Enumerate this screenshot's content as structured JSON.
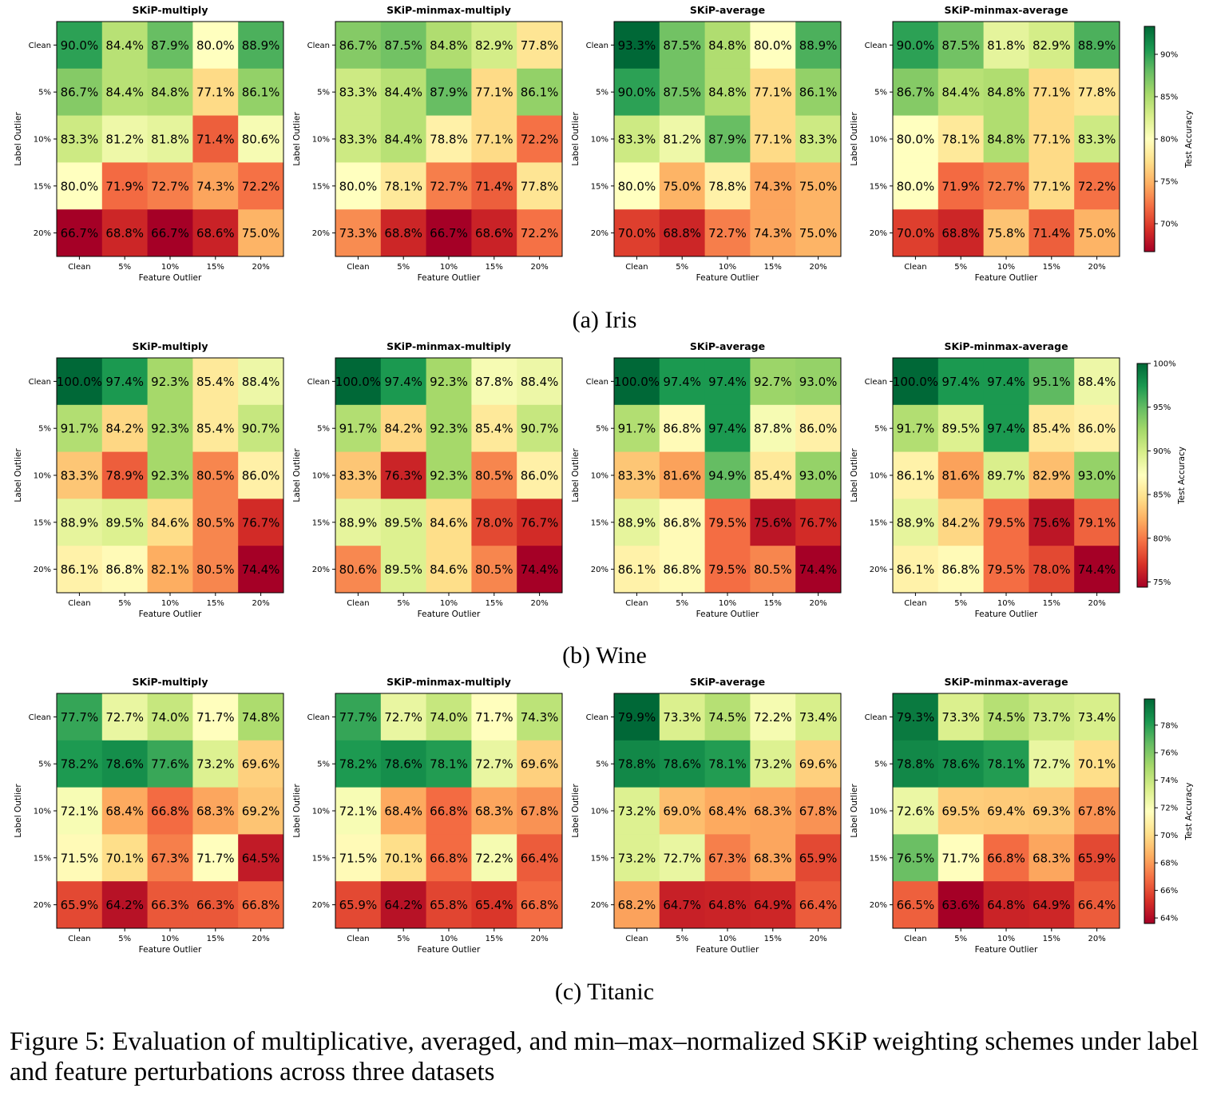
{
  "figure": {
    "caption": "Figure 5: Evaluation of multiplicative, averaged, and min–max–normalized SKiP weighting schemes under label and feature perturbations across three datasets"
  },
  "chart_data": [
    {
      "dataset_label": "(a) Iris",
      "type": "heatmap",
      "xlabel": "Feature Outlier",
      "ylabel": "Label Outlier",
      "x_categories": [
        "Clean",
        "5%",
        "10%",
        "15%",
        "20%"
      ],
      "y_categories": [
        "Clean",
        "5%",
        "10%",
        "15%",
        "20%"
      ],
      "colorbar_label": "Test Accuracy",
      "colorbar_range": [
        66.7,
        93.3
      ],
      "colorbar_ticks": [
        70,
        75,
        80,
        85,
        90
      ],
      "colormap": "RdYlGn",
      "panels": [
        {
          "title": "SKiP-multiply",
          "values": [
            [
              90.0,
              84.4,
              87.9,
              80.0,
              88.9
            ],
            [
              86.7,
              84.4,
              84.8,
              77.1,
              86.1
            ],
            [
              83.3,
              81.2,
              81.8,
              71.4,
              80.6
            ],
            [
              80.0,
              71.9,
              72.7,
              74.3,
              72.2
            ],
            [
              66.7,
              68.8,
              66.7,
              68.6,
              75.0
            ]
          ]
        },
        {
          "title": "SKiP-minmax-multiply",
          "values": [
            [
              86.7,
              87.5,
              84.8,
              82.9,
              77.8
            ],
            [
              83.3,
              84.4,
              87.9,
              77.1,
              86.1
            ],
            [
              83.3,
              84.4,
              78.8,
              77.1,
              72.2
            ],
            [
              80.0,
              78.1,
              72.7,
              71.4,
              77.8
            ],
            [
              73.3,
              68.8,
              66.7,
              68.6,
              72.2
            ]
          ]
        },
        {
          "title": "SKiP-average",
          "values": [
            [
              93.3,
              87.5,
              84.8,
              80.0,
              88.9
            ],
            [
              90.0,
              87.5,
              84.8,
              77.1,
              86.1
            ],
            [
              83.3,
              81.2,
              87.9,
              77.1,
              83.3
            ],
            [
              80.0,
              75.0,
              78.8,
              74.3,
              75.0
            ],
            [
              70.0,
              68.8,
              72.7,
              74.3,
              75.0
            ]
          ]
        },
        {
          "title": "SKiP-minmax-average",
          "values": [
            [
              90.0,
              87.5,
              81.8,
              82.9,
              88.9
            ],
            [
              86.7,
              84.4,
              84.8,
              77.1,
              77.8
            ],
            [
              80.0,
              78.1,
              84.8,
              77.1,
              83.3
            ],
            [
              80.0,
              71.9,
              72.7,
              77.1,
              72.2
            ],
            [
              70.0,
              68.8,
              75.8,
              71.4,
              75.0
            ]
          ]
        }
      ]
    },
    {
      "dataset_label": "(b) Wine",
      "type": "heatmap",
      "xlabel": "Feature Outlier",
      "ylabel": "Label Outlier",
      "x_categories": [
        "Clean",
        "5%",
        "10%",
        "15%",
        "20%"
      ],
      "y_categories": [
        "Clean",
        "5%",
        "10%",
        "15%",
        "20%"
      ],
      "colorbar_label": "Test Accuracy",
      "colorbar_range": [
        74.4,
        100.0
      ],
      "colorbar_ticks": [
        75,
        80,
        85,
        90,
        95,
        100
      ],
      "colormap": "RdYlGn",
      "panels": [
        {
          "title": "SKiP-multiply",
          "values": [
            [
              100.0,
              97.4,
              92.3,
              85.4,
              88.4
            ],
            [
              91.7,
              84.2,
              92.3,
              85.4,
              90.7
            ],
            [
              83.3,
              78.9,
              92.3,
              80.5,
              86.0
            ],
            [
              88.9,
              89.5,
              84.6,
              80.5,
              76.7
            ],
            [
              86.1,
              86.8,
              82.1,
              80.5,
              74.4
            ]
          ]
        },
        {
          "title": "SKiP-minmax-multiply",
          "values": [
            [
              100.0,
              97.4,
              92.3,
              87.8,
              88.4
            ],
            [
              91.7,
              84.2,
              92.3,
              85.4,
              90.7
            ],
            [
              83.3,
              76.3,
              92.3,
              80.5,
              86.0
            ],
            [
              88.9,
              89.5,
              84.6,
              78.0,
              76.7
            ],
            [
              80.6,
              89.5,
              84.6,
              80.5,
              74.4
            ]
          ]
        },
        {
          "title": "SKiP-average",
          "values": [
            [
              100.0,
              97.4,
              97.4,
              92.7,
              93.0
            ],
            [
              91.7,
              86.8,
              97.4,
              87.8,
              86.0
            ],
            [
              83.3,
              81.6,
              94.9,
              85.4,
              93.0
            ],
            [
              88.9,
              86.8,
              79.5,
              75.6,
              76.7
            ],
            [
              86.1,
              86.8,
              79.5,
              80.5,
              74.4
            ]
          ]
        },
        {
          "title": "SKiP-minmax-average",
          "values": [
            [
              100.0,
              97.4,
              97.4,
              95.1,
              88.4
            ],
            [
              91.7,
              89.5,
              97.4,
              85.4,
              86.0
            ],
            [
              86.1,
              81.6,
              89.7,
              82.9,
              93.0
            ],
            [
              88.9,
              84.2,
              79.5,
              75.6,
              79.1
            ],
            [
              86.1,
              86.8,
              79.5,
              78.0,
              74.4
            ]
          ]
        }
      ]
    },
    {
      "dataset_label": "(c) Titanic",
      "type": "heatmap",
      "xlabel": "Feature Outlier",
      "ylabel": "Label Outlier",
      "x_categories": [
        "Clean",
        "5%",
        "10%",
        "15%",
        "20%"
      ],
      "y_categories": [
        "Clean",
        "5%",
        "10%",
        "15%",
        "20%"
      ],
      "colorbar_label": "Test Accuracy",
      "colorbar_range": [
        63.6,
        79.9
      ],
      "colorbar_ticks": [
        64,
        66,
        68,
        70,
        72,
        74,
        76,
        78
      ],
      "colormap": "RdYlGn",
      "panels": [
        {
          "title": "SKiP-multiply",
          "values": [
            [
              77.7,
              72.7,
              74.0,
              71.7,
              74.8
            ],
            [
              78.2,
              78.6,
              77.6,
              73.2,
              69.6
            ],
            [
              72.1,
              68.4,
              66.8,
              68.3,
              69.2
            ],
            [
              71.5,
              70.1,
              67.3,
              71.7,
              64.5
            ],
            [
              65.9,
              64.2,
              66.3,
              66.3,
              66.8
            ]
          ]
        },
        {
          "title": "SKiP-minmax-multiply",
          "values": [
            [
              77.7,
              72.7,
              74.0,
              71.7,
              74.3
            ],
            [
              78.2,
              78.6,
              78.1,
              72.7,
              69.6
            ],
            [
              72.1,
              68.4,
              66.8,
              68.3,
              67.8
            ],
            [
              71.5,
              70.1,
              66.8,
              72.2,
              66.4
            ],
            [
              65.9,
              64.2,
              65.8,
              65.4,
              66.8
            ]
          ]
        },
        {
          "title": "SKiP-average",
          "values": [
            [
              79.9,
              73.3,
              74.5,
              72.2,
              73.4
            ],
            [
              78.8,
              78.6,
              78.1,
              73.2,
              69.6
            ],
            [
              73.2,
              69.0,
              68.4,
              68.3,
              67.8
            ],
            [
              73.2,
              72.7,
              67.3,
              68.3,
              65.9
            ],
            [
              68.2,
              64.7,
              64.8,
              64.9,
              66.4
            ]
          ]
        },
        {
          "title": "SKiP-minmax-average",
          "values": [
            [
              79.3,
              73.3,
              74.5,
              73.7,
              73.4
            ],
            [
              78.8,
              78.6,
              78.1,
              72.7,
              70.1
            ],
            [
              72.6,
              69.5,
              69.4,
              69.3,
              67.8
            ],
            [
              76.5,
              71.7,
              66.8,
              68.3,
              65.9
            ],
            [
              66.5,
              63.6,
              64.8,
              64.9,
              66.4
            ]
          ]
        }
      ]
    }
  ]
}
